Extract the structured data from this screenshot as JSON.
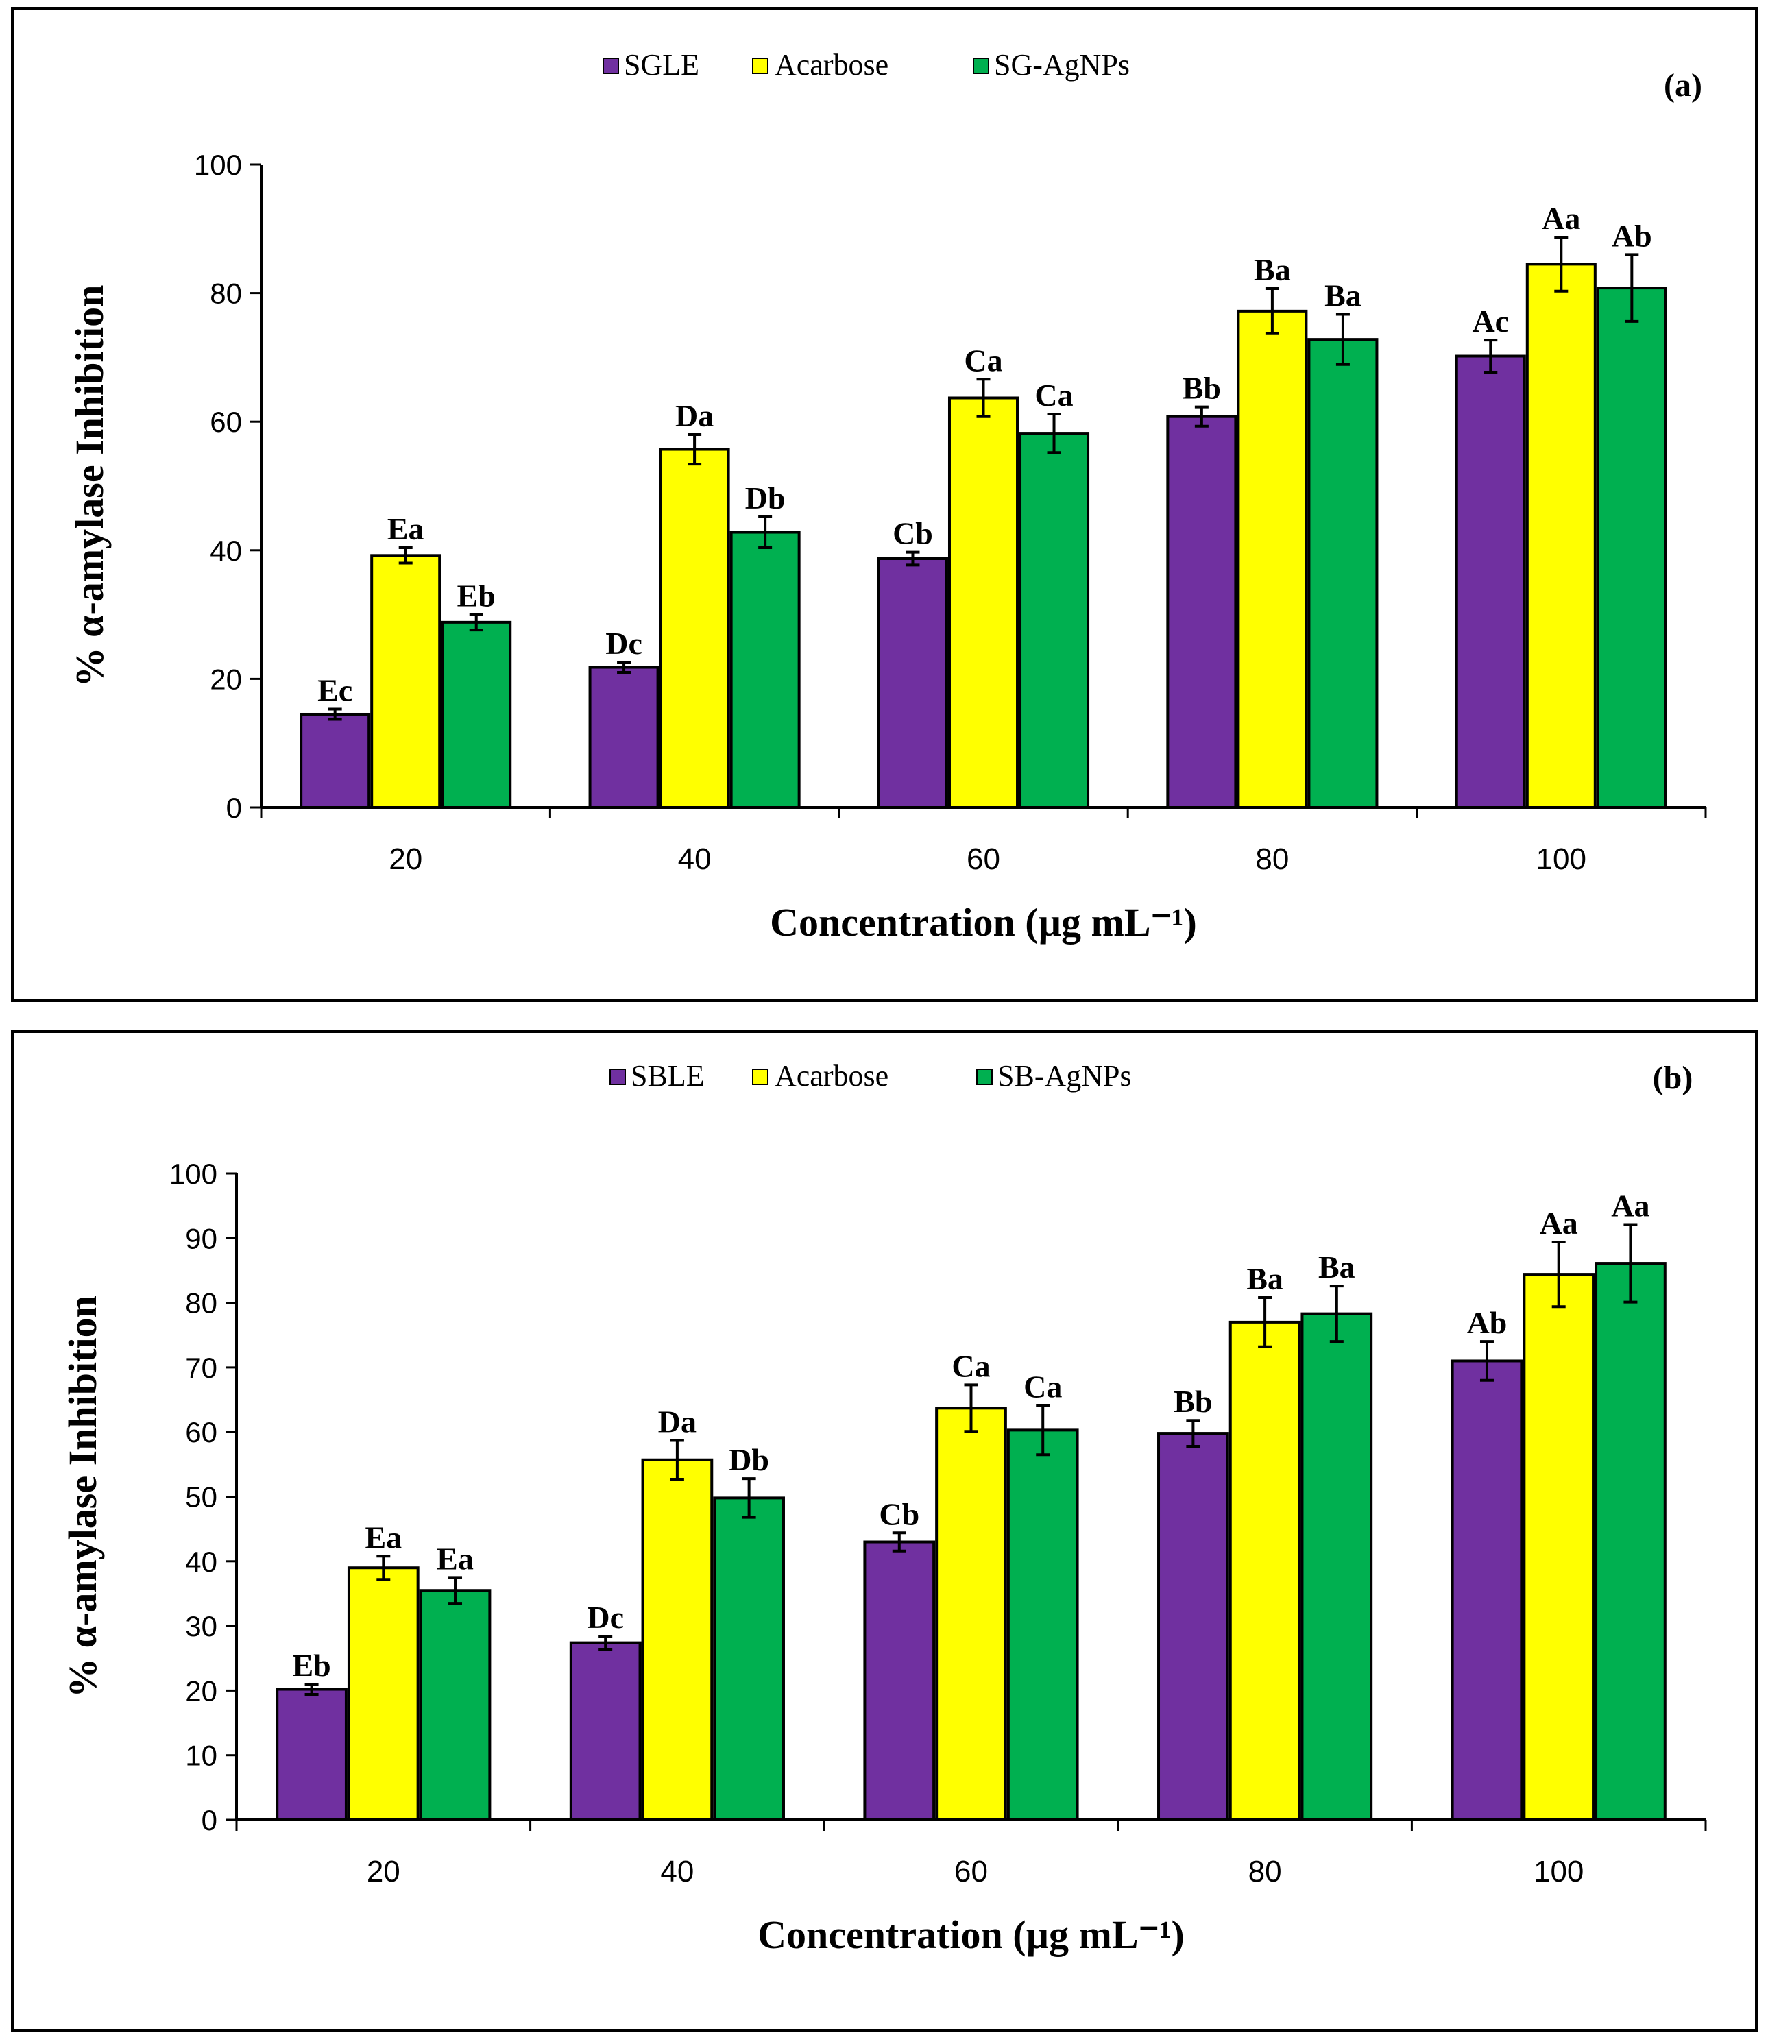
{
  "chart_data": [
    {
      "type": "bar",
      "panel": "(a)",
      "xlabel": "Concentration (µg mL⁻¹)",
      "ylabel": "% α-amylase Inhibition",
      "ylim": [
        0,
        100
      ],
      "yticks": [
        0,
        20,
        40,
        60,
        80,
        100
      ],
      "categories": [
        "20",
        "40",
        "60",
        "80",
        "100"
      ],
      "legend_position": "top-center",
      "series": [
        {
          "name": "SGLE",
          "color": "#7030A0",
          "values": [
            14.5,
            21.8,
            38.7,
            60.8,
            70.2
          ],
          "errors": [
            0.8,
            0.8,
            1.0,
            1.5,
            2.5
          ],
          "labels": [
            "Ec",
            "Dc",
            "Cb",
            "Bb",
            "Ac"
          ]
        },
        {
          "name": "Acarbose",
          "color": "#FFFF00",
          "values": [
            39.2,
            55.7,
            63.7,
            77.2,
            84.5
          ],
          "errors": [
            1.2,
            2.3,
            2.9,
            3.5,
            4.2
          ],
          "labels": [
            "Ea",
            "Da",
            "Ca",
            "Ba",
            "Aa"
          ]
        },
        {
          "name": "SG-AgNPs",
          "color": "#00B050",
          "values": [
            28.8,
            42.8,
            58.2,
            72.8,
            80.8
          ],
          "errors": [
            1.2,
            2.4,
            3.0,
            3.9,
            5.2
          ],
          "labels": [
            "Eb",
            "Db",
            "Ca",
            "Ba",
            "Ab"
          ]
        }
      ]
    },
    {
      "type": "bar",
      "panel": "(b)",
      "xlabel": "Concentration (µg mL⁻¹)",
      "ylabel": "% α-amylase Inhibition",
      "ylim": [
        0,
        100
      ],
      "yticks": [
        0,
        10,
        20,
        30,
        40,
        50,
        60,
        70,
        80,
        90,
        100
      ],
      "categories": [
        "20",
        "40",
        "60",
        "80",
        "100"
      ],
      "legend_position": "top-center",
      "series": [
        {
          "name": "SBLE",
          "color": "#7030A0",
          "values": [
            20.2,
            27.4,
            43.0,
            59.8,
            71.0
          ],
          "errors": [
            0.8,
            1.0,
            1.4,
            2.0,
            3.0
          ],
          "labels": [
            "Eb",
            "Dc",
            "Cb",
            "Bb",
            "Ab"
          ]
        },
        {
          "name": "Acarbose",
          "color": "#FFFF00",
          "values": [
            39.0,
            55.7,
            63.7,
            77.0,
            84.4
          ],
          "errors": [
            1.8,
            3.0,
            3.6,
            3.8,
            5.0
          ],
          "labels": [
            "Ea",
            "Da",
            "Ca",
            "Ba",
            "Aa"
          ]
        },
        {
          "name": "SB-AgNPs",
          "color": "#00B050",
          "values": [
            35.5,
            49.8,
            60.3,
            78.3,
            86.1
          ],
          "errors": [
            2.0,
            3.0,
            3.8,
            4.3,
            6.0
          ],
          "labels": [
            "Ea",
            "Db",
            "Ca",
            "Ba",
            "Aa"
          ]
        }
      ]
    }
  ]
}
